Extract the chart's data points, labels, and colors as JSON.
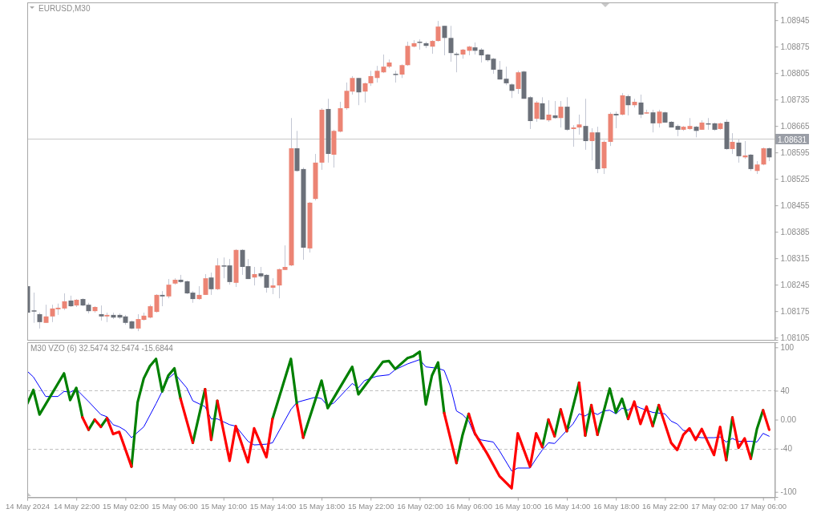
{
  "chart_data": [
    {
      "type": "candlestick",
      "title": "EURUSD,M30",
      "tick_labels": "y",
      "xlim": [
        "2024-05-14T18:00",
        "2024-05-17T06:56"
      ],
      "ylim": [
        1.08099,
        1.08992
      ],
      "yticks": [
        1.08945,
        1.08875,
        1.08805,
        1.08735,
        1.08665,
        1.08595,
        1.08525,
        1.08455,
        1.08385,
        1.08315,
        1.08245,
        1.08175,
        1.08105
      ],
      "ref_lines": [
        {
          "axis": "y",
          "value": 1.08631,
          "label": "1.08631",
          "color": "#c8c8c8"
        }
      ],
      "x": [
        "2024-05-14T18:00",
        "2024-05-14T18:30",
        "2024-05-14T19:00",
        "2024-05-14T19:30",
        "2024-05-14T20:00",
        "2024-05-14T20:30",
        "2024-05-14T21:00",
        "2024-05-14T21:30",
        "2024-05-14T22:00",
        "2024-05-14T22:30",
        "2024-05-14T23:00",
        "2024-05-14T23:30",
        "2024-05-15T00:00",
        "2024-05-15T00:30",
        "2024-05-15T01:00",
        "2024-05-15T01:30",
        "2024-05-15T02:00",
        "2024-05-15T02:30",
        "2024-05-15T03:00",
        "2024-05-15T03:30",
        "2024-05-15T04:00",
        "2024-05-15T04:30",
        "2024-05-15T05:00",
        "2024-05-15T05:30",
        "2024-05-15T06:00",
        "2024-05-15T06:30",
        "2024-05-15T07:00",
        "2024-05-15T07:30",
        "2024-05-15T08:00",
        "2024-05-15T08:30",
        "2024-05-15T09:00",
        "2024-05-15T09:30",
        "2024-05-15T10:00",
        "2024-05-15T10:30",
        "2024-05-15T11:00",
        "2024-05-15T11:30",
        "2024-05-15T12:00",
        "2024-05-15T12:30",
        "2024-05-15T13:00",
        "2024-05-15T13:30",
        "2024-05-15T14:00",
        "2024-05-15T14:30",
        "2024-05-15T15:00",
        "2024-05-15T15:30",
        "2024-05-15T16:00",
        "2024-05-15T16:30",
        "2024-05-15T17:00",
        "2024-05-15T17:30",
        "2024-05-15T18:00",
        "2024-05-15T18:30",
        "2024-05-15T19:00",
        "2024-05-15T19:30",
        "2024-05-15T20:00",
        "2024-05-15T20:30",
        "2024-05-15T21:00",
        "2024-05-15T21:30",
        "2024-05-15T22:00",
        "2024-05-15T22:30",
        "2024-05-15T23:00",
        "2024-05-15T23:30",
        "2024-05-16T00:00",
        "2024-05-16T00:30",
        "2024-05-16T01:00",
        "2024-05-16T01:30",
        "2024-05-16T02:00",
        "2024-05-16T02:30",
        "2024-05-16T03:00",
        "2024-05-16T03:30",
        "2024-05-16T04:00",
        "2024-05-16T04:30",
        "2024-05-16T05:00",
        "2024-05-16T05:30",
        "2024-05-16T06:00",
        "2024-05-16T06:30",
        "2024-05-16T07:00",
        "2024-05-16T07:30",
        "2024-05-16T08:00",
        "2024-05-16T08:30",
        "2024-05-16T09:00",
        "2024-05-16T09:30",
        "2024-05-16T10:00",
        "2024-05-16T10:30",
        "2024-05-16T11:00",
        "2024-05-16T11:30",
        "2024-05-16T12:00",
        "2024-05-16T12:30",
        "2024-05-16T13:00",
        "2024-05-16T13:30",
        "2024-05-16T14:00",
        "2024-05-16T14:30",
        "2024-05-16T15:00",
        "2024-05-16T15:30",
        "2024-05-16T16:00",
        "2024-05-16T16:30",
        "2024-05-16T17:00",
        "2024-05-16T17:30",
        "2024-05-16T18:00",
        "2024-05-16T18:30",
        "2024-05-16T19:00",
        "2024-05-16T19:30",
        "2024-05-16T20:00",
        "2024-05-16T20:30",
        "2024-05-16T21:00",
        "2024-05-16T21:30",
        "2024-05-16T22:00",
        "2024-05-16T22:30",
        "2024-05-16T23:00",
        "2024-05-16T23:30",
        "2024-05-17T00:00",
        "2024-05-17T00:30",
        "2024-05-17T01:00",
        "2024-05-17T01:30",
        "2024-05-17T02:00",
        "2024-05-17T02:30",
        "2024-05-17T03:00",
        "2024-05-17T03:30",
        "2024-05-17T04:00",
        "2024-05-17T04:30",
        "2024-05-17T05:00",
        "2024-05-17T05:30",
        "2024-05-17T06:00",
        "2024-05-17T06:30"
      ],
      "ohlc": [
        [
          1.08241,
          1.08241,
          1.08154,
          1.08171
        ],
        [
          1.08177,
          1.08224,
          1.08144,
          1.08174
        ],
        [
          1.08167,
          1.08171,
          1.08129,
          1.08146
        ],
        [
          1.08144,
          1.08192,
          1.08144,
          1.08161
        ],
        [
          1.08161,
          1.08192,
          1.08146,
          1.08182
        ],
        [
          1.0818,
          1.08195,
          1.08165,
          1.08184
        ],
        [
          1.08182,
          1.08222,
          1.08178,
          1.08201
        ],
        [
          1.08203,
          1.08216,
          1.08186,
          1.08188
        ],
        [
          1.0819,
          1.08207,
          1.08186,
          1.08205
        ],
        [
          1.08207,
          1.08209,
          1.08188,
          1.0819
        ],
        [
          1.08192,
          1.08197,
          1.08169,
          1.08175
        ],
        [
          1.08175,
          1.08188,
          1.08171,
          1.08186
        ],
        [
          1.08167,
          1.0819,
          1.0815,
          1.08161
        ],
        [
          1.08161,
          1.08171,
          1.08146,
          1.08165
        ],
        [
          1.08165,
          1.08171,
          1.08154,
          1.08158
        ],
        [
          1.08165,
          1.08169,
          1.08154,
          1.08158
        ],
        [
          1.08161,
          1.08165,
          1.08139,
          1.08144
        ],
        [
          1.08148,
          1.0815,
          1.08127,
          1.08129
        ],
        [
          1.08129,
          1.08167,
          1.08122,
          1.08154
        ],
        [
          1.08152,
          1.08171,
          1.0815,
          1.08163
        ],
        [
          1.08158,
          1.08192,
          1.08156,
          1.08188
        ],
        [
          1.08173,
          1.0822,
          1.08171,
          1.08218
        ],
        [
          1.08218,
          1.08228,
          1.08188,
          1.08214
        ],
        [
          1.08214,
          1.0826,
          1.08209,
          1.08245
        ],
        [
          1.08248,
          1.08262,
          1.08245,
          1.08258
        ],
        [
          1.08258,
          1.08271,
          1.0825,
          1.08252
        ],
        [
          1.08254,
          1.08256,
          1.0822,
          1.08222
        ],
        [
          1.08224,
          1.08228,
          1.08197,
          1.08207
        ],
        [
          1.08207,
          1.08241,
          1.08205,
          1.08218
        ],
        [
          1.08218,
          1.08273,
          1.08218,
          1.08262
        ],
        [
          1.08264,
          1.08277,
          1.08218,
          1.08233
        ],
        [
          1.08233,
          1.08315,
          1.08231,
          1.08296
        ],
        [
          1.08296,
          1.08317,
          1.08262,
          1.08294
        ],
        [
          1.08296,
          1.08313,
          1.08245,
          1.08252
        ],
        [
          1.0825,
          1.08339,
          1.08239,
          1.08337
        ],
        [
          1.08337,
          1.08339,
          1.08271,
          1.08292
        ],
        [
          1.08294,
          1.08313,
          1.0826,
          1.0826
        ],
        [
          1.08264,
          1.08292,
          1.08243,
          1.08273
        ],
        [
          1.08275,
          1.08292,
          1.08262,
          1.08267
        ],
        [
          1.08271,
          1.08273,
          1.08224,
          1.08237
        ],
        [
          1.08237,
          1.08262,
          1.0822,
          1.08243
        ],
        [
          1.08243,
          1.08288,
          1.08209,
          1.08286
        ],
        [
          1.08284,
          1.08349,
          1.08284,
          1.08292
        ],
        [
          1.08296,
          1.08686,
          1.08294,
          1.08606
        ],
        [
          1.08606,
          1.08652,
          1.08544,
          1.08546
        ],
        [
          1.08551,
          1.08555,
          1.08311,
          1.08343
        ],
        [
          1.08341,
          1.08464,
          1.0833,
          1.08462
        ],
        [
          1.08472,
          1.08591,
          1.08468,
          1.08568
        ],
        [
          1.08568,
          1.08712,
          1.08549,
          1.08708
        ],
        [
          1.0871,
          1.08737,
          1.08568,
          1.08591
        ],
        [
          1.08589,
          1.08655,
          1.08555,
          1.08652
        ],
        [
          1.0865,
          1.08729,
          1.08648,
          1.08712
        ],
        [
          1.08712,
          1.0878,
          1.08708,
          1.08758
        ],
        [
          1.08756,
          1.08797,
          1.08748,
          1.08792
        ],
        [
          1.08792,
          1.08792,
          1.0872,
          1.08754
        ],
        [
          1.08756,
          1.0878,
          1.08727,
          1.08778
        ],
        [
          1.08778,
          1.08811,
          1.08771,
          1.08797
        ],
        [
          1.08792,
          1.08824,
          1.0878,
          1.08811
        ],
        [
          1.08807,
          1.08854,
          1.08805,
          1.08822
        ],
        [
          1.08822,
          1.08841,
          1.08818,
          1.08833
        ],
        [
          1.08803,
          1.08811,
          1.0878,
          1.08801
        ],
        [
          1.08801,
          1.08828,
          1.08792,
          1.08826
        ],
        [
          1.08826,
          1.08888,
          1.08824,
          1.08877
        ],
        [
          1.08875,
          1.08892,
          1.08873,
          1.08884
        ],
        [
          1.08888,
          1.08894,
          1.08867,
          1.08886
        ],
        [
          1.08884,
          1.08888,
          1.08871,
          1.08877
        ],
        [
          1.08875,
          1.08892,
          1.08856,
          1.0889
        ],
        [
          1.0889,
          1.08943,
          1.08888,
          1.08928
        ],
        [
          1.0893,
          1.0893,
          1.08852,
          1.08898
        ],
        [
          1.08898,
          1.0893,
          1.08835,
          1.08858
        ],
        [
          1.08856,
          1.0886,
          1.08807,
          1.08854
        ],
        [
          1.08854,
          1.08869,
          1.08843,
          1.08867
        ],
        [
          1.08864,
          1.08877,
          1.08852,
          1.08875
        ],
        [
          1.08873,
          1.08886,
          1.08854,
          1.08864
        ],
        [
          1.08867,
          1.08871,
          1.08833,
          1.08852
        ],
        [
          1.08854,
          1.08856,
          1.08835,
          1.08839
        ],
        [
          1.08843,
          1.08845,
          1.08803,
          1.08814
        ],
        [
          1.08814,
          1.08837,
          1.08788,
          1.08788
        ],
        [
          1.0879,
          1.08822,
          1.08773,
          1.08778
        ],
        [
          1.08775,
          1.08778,
          1.08739,
          1.08758
        ],
        [
          1.08763,
          1.08811,
          1.0875,
          1.08807
        ],
        [
          1.08809,
          1.08811,
          1.08737,
          1.08737
        ],
        [
          1.08741,
          1.08744,
          1.08657,
          1.08678
        ],
        [
          1.08684,
          1.08731,
          1.08676,
          1.08727
        ],
        [
          1.08725,
          1.08741,
          1.08682,
          1.08682
        ],
        [
          1.0868,
          1.08733,
          1.08676,
          1.08695
        ],
        [
          1.08693,
          1.08731,
          1.08684,
          1.08686
        ],
        [
          1.08686,
          1.08731,
          1.08661,
          1.08716
        ],
        [
          1.08716,
          1.08741,
          1.08652,
          1.08655
        ],
        [
          1.08657,
          1.08667,
          1.0861,
          1.08661
        ],
        [
          1.08661,
          1.08695,
          1.08642,
          1.08669
        ],
        [
          1.08665,
          1.08737,
          1.08602,
          1.08625
        ],
        [
          1.08625,
          1.08659,
          1.08574,
          1.08648
        ],
        [
          1.08648,
          1.08663,
          1.0854,
          1.08551
        ],
        [
          1.08553,
          1.08627,
          1.08538,
          1.08623
        ],
        [
          1.08623,
          1.08701,
          1.08612,
          1.08697
        ],
        [
          1.08697,
          1.08703,
          1.08659,
          1.08693
        ],
        [
          1.08695,
          1.08752,
          1.08693,
          1.08746
        ],
        [
          1.08744,
          1.08748,
          1.08693,
          1.0872
        ],
        [
          1.0872,
          1.08737,
          1.08714,
          1.08729
        ],
        [
          1.08727,
          1.08748,
          1.08686,
          1.08695
        ],
        [
          1.08699,
          1.08708,
          1.08697,
          1.08701
        ],
        [
          1.08701,
          1.08708,
          1.08648,
          1.08672
        ],
        [
          1.08672,
          1.08708,
          1.08661,
          1.08703
        ],
        [
          1.08701,
          1.08703,
          1.08674,
          1.08674
        ],
        [
          1.08676,
          1.08678,
          1.08661,
          1.08661
        ],
        [
          1.08665,
          1.08669,
          1.08638,
          1.08655
        ],
        [
          1.08655,
          1.08665,
          1.08652,
          1.08663
        ],
        [
          1.08657,
          1.08686,
          1.08655,
          1.08665
        ],
        [
          1.08663,
          1.08665,
          1.08635,
          1.08652
        ],
        [
          1.08655,
          1.0868,
          1.08655,
          1.08674
        ],
        [
          1.08672,
          1.08686,
          1.08655,
          1.08669
        ],
        [
          1.08672,
          1.08674,
          1.08652,
          1.08655
        ],
        [
          1.08657,
          1.08674,
          1.08655,
          1.08672
        ],
        [
          1.08676,
          1.08682,
          1.08602,
          1.08604
        ],
        [
          1.08604,
          1.08646,
          1.08591,
          1.08623
        ],
        [
          1.08621,
          1.08631,
          1.08568,
          1.08585
        ],
        [
          1.08582,
          1.08625,
          1.08578,
          1.08587
        ],
        [
          1.08589,
          1.08591,
          1.08546,
          1.08551
        ],
        [
          1.08546,
          1.08572,
          1.08538,
          1.08563
        ],
        [
          1.08563,
          1.08608,
          1.08561,
          1.08606
        ],
        [
          1.08606,
          1.08608,
          1.08572,
          1.08582
        ]
      ],
      "colors": [
        "#6b7079",
        "#6b7079",
        "#6b7079",
        "#ec8474",
        "#ec8474",
        "#ec8474",
        "#ec8474",
        "#6b7079",
        "#ec8474",
        "#6b7079",
        "#6b7079",
        "#ec8474",
        "#6b7079",
        "#ec8474",
        "#6b7079",
        "#6b7079",
        "#6b7079",
        "#6b7079",
        "#ec8474",
        "#ec8474",
        "#ec8474",
        "#ec8474",
        "#6b7079",
        "#ec8474",
        "#ec8474",
        "#6b7079",
        "#6b7079",
        "#6b7079",
        "#ec8474",
        "#ec8474",
        "#6b7079",
        "#ec8474",
        "#6b7079",
        "#6b7079",
        "#ec8474",
        "#6b7079",
        "#6b7079",
        "#ec8474",
        "#6b7079",
        "#6b7079",
        "#ec8474",
        "#ec8474",
        "#ec8474",
        "#ec8474",
        "#6b7079",
        "#6b7079",
        "#ec8474",
        "#ec8474",
        "#ec8474",
        "#6b7079",
        "#ec8474",
        "#ec8474",
        "#ec8474",
        "#ec8474",
        "#6b7079",
        "#ec8474",
        "#ec8474",
        "#ec8474",
        "#ec8474",
        "#ec8474",
        "#6b7079",
        "#ec8474",
        "#ec8474",
        "#ec8474",
        "#6b7079",
        "#6b7079",
        "#ec8474",
        "#ec8474",
        "#6b7079",
        "#6b7079",
        "#6b7079",
        "#ec8474",
        "#ec8474",
        "#6b7079",
        "#6b7079",
        "#6b7079",
        "#6b7079",
        "#6b7079",
        "#6b7079",
        "#6b7079",
        "#ec8474",
        "#6b7079",
        "#6b7079",
        "#ec8474",
        "#6b7079",
        "#ec8474",
        "#6b7079",
        "#ec8474",
        "#6b7079",
        "#ec8474",
        "#ec8474",
        "#6b7079",
        "#ec8474",
        "#6b7079",
        "#ec8474",
        "#ec8474",
        "#6b7079",
        "#ec8474",
        "#6b7079",
        "#ec8474",
        "#6b7079",
        "#ec8474",
        "#6b7079",
        "#ec8474",
        "#6b7079",
        "#6b7079",
        "#6b7079",
        "#ec8474",
        "#ec8474",
        "#6b7079",
        "#ec8474",
        "#6b7079",
        "#6b7079",
        "#ec8474",
        "#6b7079",
        "#ec8474",
        "#6b7079",
        "#ec8474",
        "#6b7079",
        "#ec8474",
        "#ec8474",
        "#6b7079"
      ]
    },
    {
      "type": "line",
      "title": "M30 VZO (6) 32.5474 32.5474 -15.6844",
      "xlim": [
        "2024-05-14T18:00",
        "2024-05-17T06:56"
      ],
      "ylim": [
        -107,
        107
      ],
      "yticks": [
        100,
        40,
        {
          "value": 0,
          "label": "0.00"
        },
        -40,
        -100
      ],
      "xticks": [
        {
          "value": "2024-05-14T18:00",
          "label": "14 May 2024"
        },
        {
          "value": "2024-05-14T22:00",
          "label": "14 May 22:00"
        },
        {
          "value": "2024-05-15T02:00",
          "label": "15 May 02:00"
        },
        {
          "value": "2024-05-15T06:00",
          "label": "15 May 06:00"
        },
        {
          "value": "2024-05-15T10:00",
          "label": "15 May 10:00"
        },
        {
          "value": "2024-05-15T14:00",
          "label": "15 May 14:00"
        },
        {
          "value": "2024-05-15T18:00",
          "label": "15 May 18:00"
        },
        {
          "value": "2024-05-15T22:00",
          "label": "15 May 22:00"
        },
        {
          "value": "2024-05-16T02:00",
          "label": "16 May 02:00"
        },
        {
          "value": "2024-05-16T06:00",
          "label": "16 May 06:00"
        },
        {
          "value": "2024-05-16T10:00",
          "label": "16 May 10:00"
        },
        {
          "value": "2024-05-16T14:00",
          "label": "16 May 14:00"
        },
        {
          "value": "2024-05-16T18:00",
          "label": "16 May 18:00"
        },
        {
          "value": "2024-05-16T22:00",
          "label": "16 May 22:00"
        },
        {
          "value": "2024-05-17T02:00",
          "label": "17 May 02:00"
        },
        {
          "value": "2024-05-17T06:00",
          "label": "17 May 06:00"
        }
      ],
      "ref_lines": [
        {
          "axis": "y",
          "value": 40,
          "color": "#c0c0c0",
          "line_style": "dashed"
        },
        {
          "axis": "y",
          "value": -40,
          "color": "#c0c0c0",
          "line_style": "dashed"
        }
      ],
      "series": [
        {
          "color": "#0000ff",
          "x": [
            "2024-05-14T18:00",
            "2024-05-14T18:30",
            "2024-05-14T19:30",
            "2024-05-14T20:30",
            "2024-05-14T21:00",
            "2024-05-14T21:30",
            "2024-05-14T22:00",
            "2024-05-14T23:00",
            "2024-05-15T00:00",
            "2024-05-15T00:30",
            "2024-05-15T01:00",
            "2024-05-15T01:30",
            "2024-05-15T02:00",
            "2024-05-15T02:30",
            "2024-05-15T03:30",
            "2024-05-15T04:30",
            "2024-05-15T05:00",
            "2024-05-15T05:30",
            "2024-05-15T06:00",
            "2024-05-15T07:00",
            "2024-05-15T07:30",
            "2024-05-15T08:30",
            "2024-05-15T09:00",
            "2024-05-15T09:30",
            "2024-05-15T10:30",
            "2024-05-15T11:00",
            "2024-05-15T12:00",
            "2024-05-15T12:30",
            "2024-05-15T13:30",
            "2024-05-15T14:00",
            "2024-05-15T15:30",
            "2024-05-15T16:00",
            "2024-05-15T17:30",
            "2024-05-15T18:00",
            "2024-05-15T18:30",
            "2024-05-15T19:00",
            "2024-05-15T20:30",
            "2024-05-15T21:00",
            "2024-05-15T21:30",
            "2024-05-15T22:30",
            "2024-05-15T23:30",
            "2024-05-16T00:00",
            "2024-05-16T01:00",
            "2024-05-16T02:00",
            "2024-05-16T02:30",
            "2024-05-16T03:30",
            "2024-05-16T04:00",
            "2024-05-16T04:30",
            "2024-05-16T05:00",
            "2024-05-16T05:30",
            "2024-05-16T06:00",
            "2024-05-16T06:30",
            "2024-05-16T07:00",
            "2024-05-16T08:00",
            "2024-05-16T08:30",
            "2024-05-16T09:30",
            "2024-05-16T10:00",
            "2024-05-16T11:00",
            "2024-05-16T11:30",
            "2024-05-16T12:00",
            "2024-05-16T12:30",
            "2024-05-16T13:00",
            "2024-05-16T14:00",
            "2024-05-16T14:30",
            "2024-05-16T15:00",
            "2024-05-16T15:30",
            "2024-05-16T16:00",
            "2024-05-16T16:30",
            "2024-05-16T17:00",
            "2024-05-16T17:30",
            "2024-05-16T18:00",
            "2024-05-16T18:30",
            "2024-05-16T19:00",
            "2024-05-16T19:30",
            "2024-05-16T20:00",
            "2024-05-16T20:30",
            "2024-05-16T21:00",
            "2024-05-16T22:00",
            "2024-05-16T22:30",
            "2024-05-16T23:00",
            "2024-05-16T23:30",
            "2024-05-17T00:00",
            "2024-05-17T00:30",
            "2024-05-17T01:00",
            "2024-05-17T02:00",
            "2024-05-17T02:30",
            "2024-05-17T03:00",
            "2024-05-17T03:30",
            "2024-05-17T04:00",
            "2024-05-17T05:00",
            "2024-05-17T05:30",
            "2024-05-17T06:00",
            "2024-05-17T06:30"
          ],
          "values": [
            67,
            59,
            32,
            32,
            39,
            38,
            42,
            25,
            7,
            4,
            -7,
            -10,
            -15,
            -25,
            -10,
            22,
            39,
            57,
            64,
            44,
            26,
            18,
            1,
            1,
            -7,
            -9,
            -30,
            -35,
            -34,
            -32,
            14,
            24,
            31,
            29,
            19,
            23,
            50,
            44,
            54,
            60,
            62,
            69,
            77,
            83,
            73,
            71,
            68,
            46,
            12,
            7,
            -2,
            -22,
            -28,
            -31,
            -43,
            -71,
            -67,
            -67,
            -54,
            -42,
            -32,
            -33,
            -15,
            -6,
            8,
            5,
            11,
            7,
            12,
            13,
            8,
            16,
            13,
            20,
            16,
            13,
            10,
            8,
            -2,
            -6,
            -15,
            -16,
            -24,
            -25,
            -25,
            -24,
            -31,
            -26,
            -30,
            -30,
            -31,
            -19,
            -23
          ]
        },
        {
          "color": "#008000",
          "x": [
            "2024-05-14T18:00",
            "2024-05-14T18:30",
            "2024-05-14T19:00",
            "2024-05-14T21:00",
            "2024-05-14T21:30",
            "2024-05-14T22:00",
            "2024-05-14T22:30"
          ],
          "values": [
            22,
            41,
            7,
            64,
            27,
            44,
            3
          ]
        },
        {
          "color": "#008000",
          "x": [
            "2024-05-14T23:00",
            "2024-05-14T23:30"
          ],
          "values": [
            -14,
            0
          ]
        },
        {
          "color": "#008000",
          "x": [
            "2024-05-15T00:00",
            "2024-05-15T00:30"
          ],
          "values": [
            -10,
            2
          ]
        },
        {
          "color": "#008000",
          "x": [
            "2024-05-15T02:30",
            "2024-05-15T03:00",
            "2024-05-15T03:30",
            "2024-05-15T04:00",
            "2024-05-15T04:30",
            "2024-05-15T05:00",
            "2024-05-15T05:30",
            "2024-05-15T06:00",
            "2024-05-15T06:30"
          ],
          "values": [
            -65,
            24,
            57,
            74,
            84,
            39,
            61,
            71,
            29
          ]
        },
        {
          "color": "#008000",
          "x": [
            "2024-05-15T07:30",
            "2024-05-15T08:30"
          ],
          "values": [
            -32,
            42
          ]
        },
        {
          "color": "#008000",
          "x": [
            "2024-05-15T09:00",
            "2024-05-15T09:30"
          ],
          "values": [
            -28,
            26
          ]
        },
        {
          "color": "#008000",
          "x": [
            "2024-05-15T14:00",
            "2024-05-15T15:30",
            "2024-05-15T16:00"
          ],
          "values": [
            1,
            84,
            20
          ]
        },
        {
          "color": "#008000",
          "x": [
            "2024-05-15T16:30",
            "2024-05-15T18:00",
            "2024-05-15T18:30",
            "2024-05-15T20:30",
            "2024-05-15T21:00",
            "2024-05-15T23:00",
            "2024-05-15T23:30",
            "2024-05-16T00:00",
            "2024-05-16T01:00",
            "2024-05-16T01:30",
            "2024-05-16T02:00",
            "2024-05-16T02:30",
            "2024-05-16T03:00",
            "2024-05-16T03:30",
            "2024-05-16T04:00"
          ],
          "values": [
            -25,
            54,
            16,
            73,
            35,
            80,
            81,
            70,
            85,
            88,
            94,
            21,
            61,
            79,
            9
          ]
        },
        {
          "color": "#008000",
          "x": [
            "2024-05-16T05:00",
            "2024-05-16T05:30",
            "2024-05-16T06:00"
          ],
          "values": [
            -60,
            -21,
            8
          ]
        },
        {
          "color": "#008000",
          "x": [
            "2024-05-16T12:00",
            "2024-05-16T12:30"
          ],
          "values": [
            -38,
            0
          ]
        },
        {
          "color": "#008000",
          "x": [
            "2024-05-16T13:00",
            "2024-05-16T13:30"
          ],
          "values": [
            -23,
            14
          ]
        },
        {
          "color": "#008000",
          "x": [
            "2024-05-16T14:00",
            "2024-05-16T15:00"
          ],
          "values": [
            -16,
            51
          ]
        },
        {
          "color": "#008000",
          "x": [
            "2024-05-16T15:30",
            "2024-05-16T16:00"
          ],
          "values": [
            -22,
            20
          ]
        },
        {
          "color": "#008000",
          "x": [
            "2024-05-16T16:30",
            "2024-05-16T17:30",
            "2024-05-16T18:00",
            "2024-05-16T18:30",
            "2024-05-16T19:00"
          ],
          "values": [
            -21,
            43,
            10,
            29,
            1
          ]
        },
        {
          "color": "#008000",
          "x": [
            "2024-05-16T21:00",
            "2024-05-16T21:30"
          ],
          "values": [
            -9,
            20
          ]
        },
        {
          "color": "#008000",
          "x": [
            "2024-05-17T03:00",
            "2024-05-17T03:30"
          ],
          "values": [
            -56,
            3
          ]
        },
        {
          "color": "#008000",
          "x": [
            "2024-05-17T05:00",
            "2024-05-17T05:30",
            "2024-05-17T06:00"
          ],
          "values": [
            -54,
            -13,
            13
          ]
        },
        {
          "color": "#ff0000",
          "x": [
            "2024-05-14T22:30",
            "2024-05-14T23:00"
          ],
          "values": [
            3,
            -14
          ]
        },
        {
          "color": "#ff0000",
          "x": [
            "2024-05-14T23:30",
            "2024-05-15T00:00"
          ],
          "values": [
            0,
            -10
          ]
        },
        {
          "color": "#ff0000",
          "x": [
            "2024-05-15T00:30",
            "2024-05-15T01:00",
            "2024-05-15T01:30",
            "2024-05-15T02:30"
          ],
          "values": [
            2,
            -20,
            -17,
            -65
          ]
        },
        {
          "color": "#ff0000",
          "x": [
            "2024-05-15T06:30",
            "2024-05-15T07:30"
          ],
          "values": [
            29,
            -32
          ]
        },
        {
          "color": "#ff0000",
          "x": [
            "2024-05-15T08:30",
            "2024-05-15T09:00"
          ],
          "values": [
            42,
            -28
          ]
        },
        {
          "color": "#ff0000",
          "x": [
            "2024-05-15T09:30",
            "2024-05-15T10:30",
            "2024-05-15T11:00",
            "2024-05-15T12:00",
            "2024-05-15T12:30",
            "2024-05-15T13:30",
            "2024-05-15T14:00"
          ],
          "values": [
            26,
            -57,
            -9,
            -59,
            -12,
            -52,
            1
          ]
        },
        {
          "color": "#ff0000",
          "x": [
            "2024-05-15T16:00",
            "2024-05-15T16:30"
          ],
          "values": [
            20,
            -25
          ]
        },
        {
          "color": "#ff0000",
          "x": [
            "2024-05-16T04:00",
            "2024-05-16T05:00"
          ],
          "values": [
            9,
            -60
          ]
        },
        {
          "color": "#ff0000",
          "x": [
            "2024-05-16T06:00",
            "2024-05-16T06:30",
            "2024-05-16T07:30",
            "2024-05-16T08:30",
            "2024-05-16T09:30",
            "2024-05-16T10:00",
            "2024-05-16T11:00",
            "2024-05-16T11:30",
            "2024-05-16T12:00"
          ],
          "values": [
            8,
            -19,
            -47,
            -78,
            -95,
            -19,
            -65,
            -19,
            -38
          ]
        },
        {
          "color": "#ff0000",
          "x": [
            "2024-05-16T12:30",
            "2024-05-16T13:00"
          ],
          "values": [
            0,
            -23
          ]
        },
        {
          "color": "#ff0000",
          "x": [
            "2024-05-16T13:30",
            "2024-05-16T14:00"
          ],
          "values": [
            14,
            -16
          ]
        },
        {
          "color": "#ff0000",
          "x": [
            "2024-05-16T15:00",
            "2024-05-16T15:30"
          ],
          "values": [
            51,
            -22
          ]
        },
        {
          "color": "#ff0000",
          "x": [
            "2024-05-16T16:00",
            "2024-05-16T16:30"
          ],
          "values": [
            20,
            -21
          ]
        },
        {
          "color": "#ff0000",
          "x": [
            "2024-05-16T19:00",
            "2024-05-16T19:30",
            "2024-05-16T20:00",
            "2024-05-16T20:30",
            "2024-05-16T21:00"
          ],
          "values": [
            1,
            25,
            -6,
            18,
            -9
          ]
        },
        {
          "color": "#ff0000",
          "x": [
            "2024-05-16T21:30",
            "2024-05-16T22:30",
            "2024-05-16T23:00",
            "2024-05-16T23:30",
            "2024-05-17T00:00",
            "2024-05-17T00:30",
            "2024-05-17T01:00",
            "2024-05-17T02:00",
            "2024-05-17T02:30",
            "2024-05-17T03:00"
          ],
          "values": [
            20,
            -32,
            -42,
            -21,
            -12,
            -28,
            -13,
            -49,
            -10,
            -56
          ]
        },
        {
          "color": "#ff0000",
          "x": [
            "2024-05-17T03:30",
            "2024-05-17T04:00",
            "2024-05-17T04:30",
            "2024-05-17T05:00"
          ],
          "values": [
            3,
            -39,
            -26,
            -54
          ]
        },
        {
          "color": "#ff0000",
          "x": [
            "2024-05-17T06:00",
            "2024-05-17T06:30"
          ],
          "values": [
            13,
            -14
          ]
        }
      ]
    }
  ]
}
